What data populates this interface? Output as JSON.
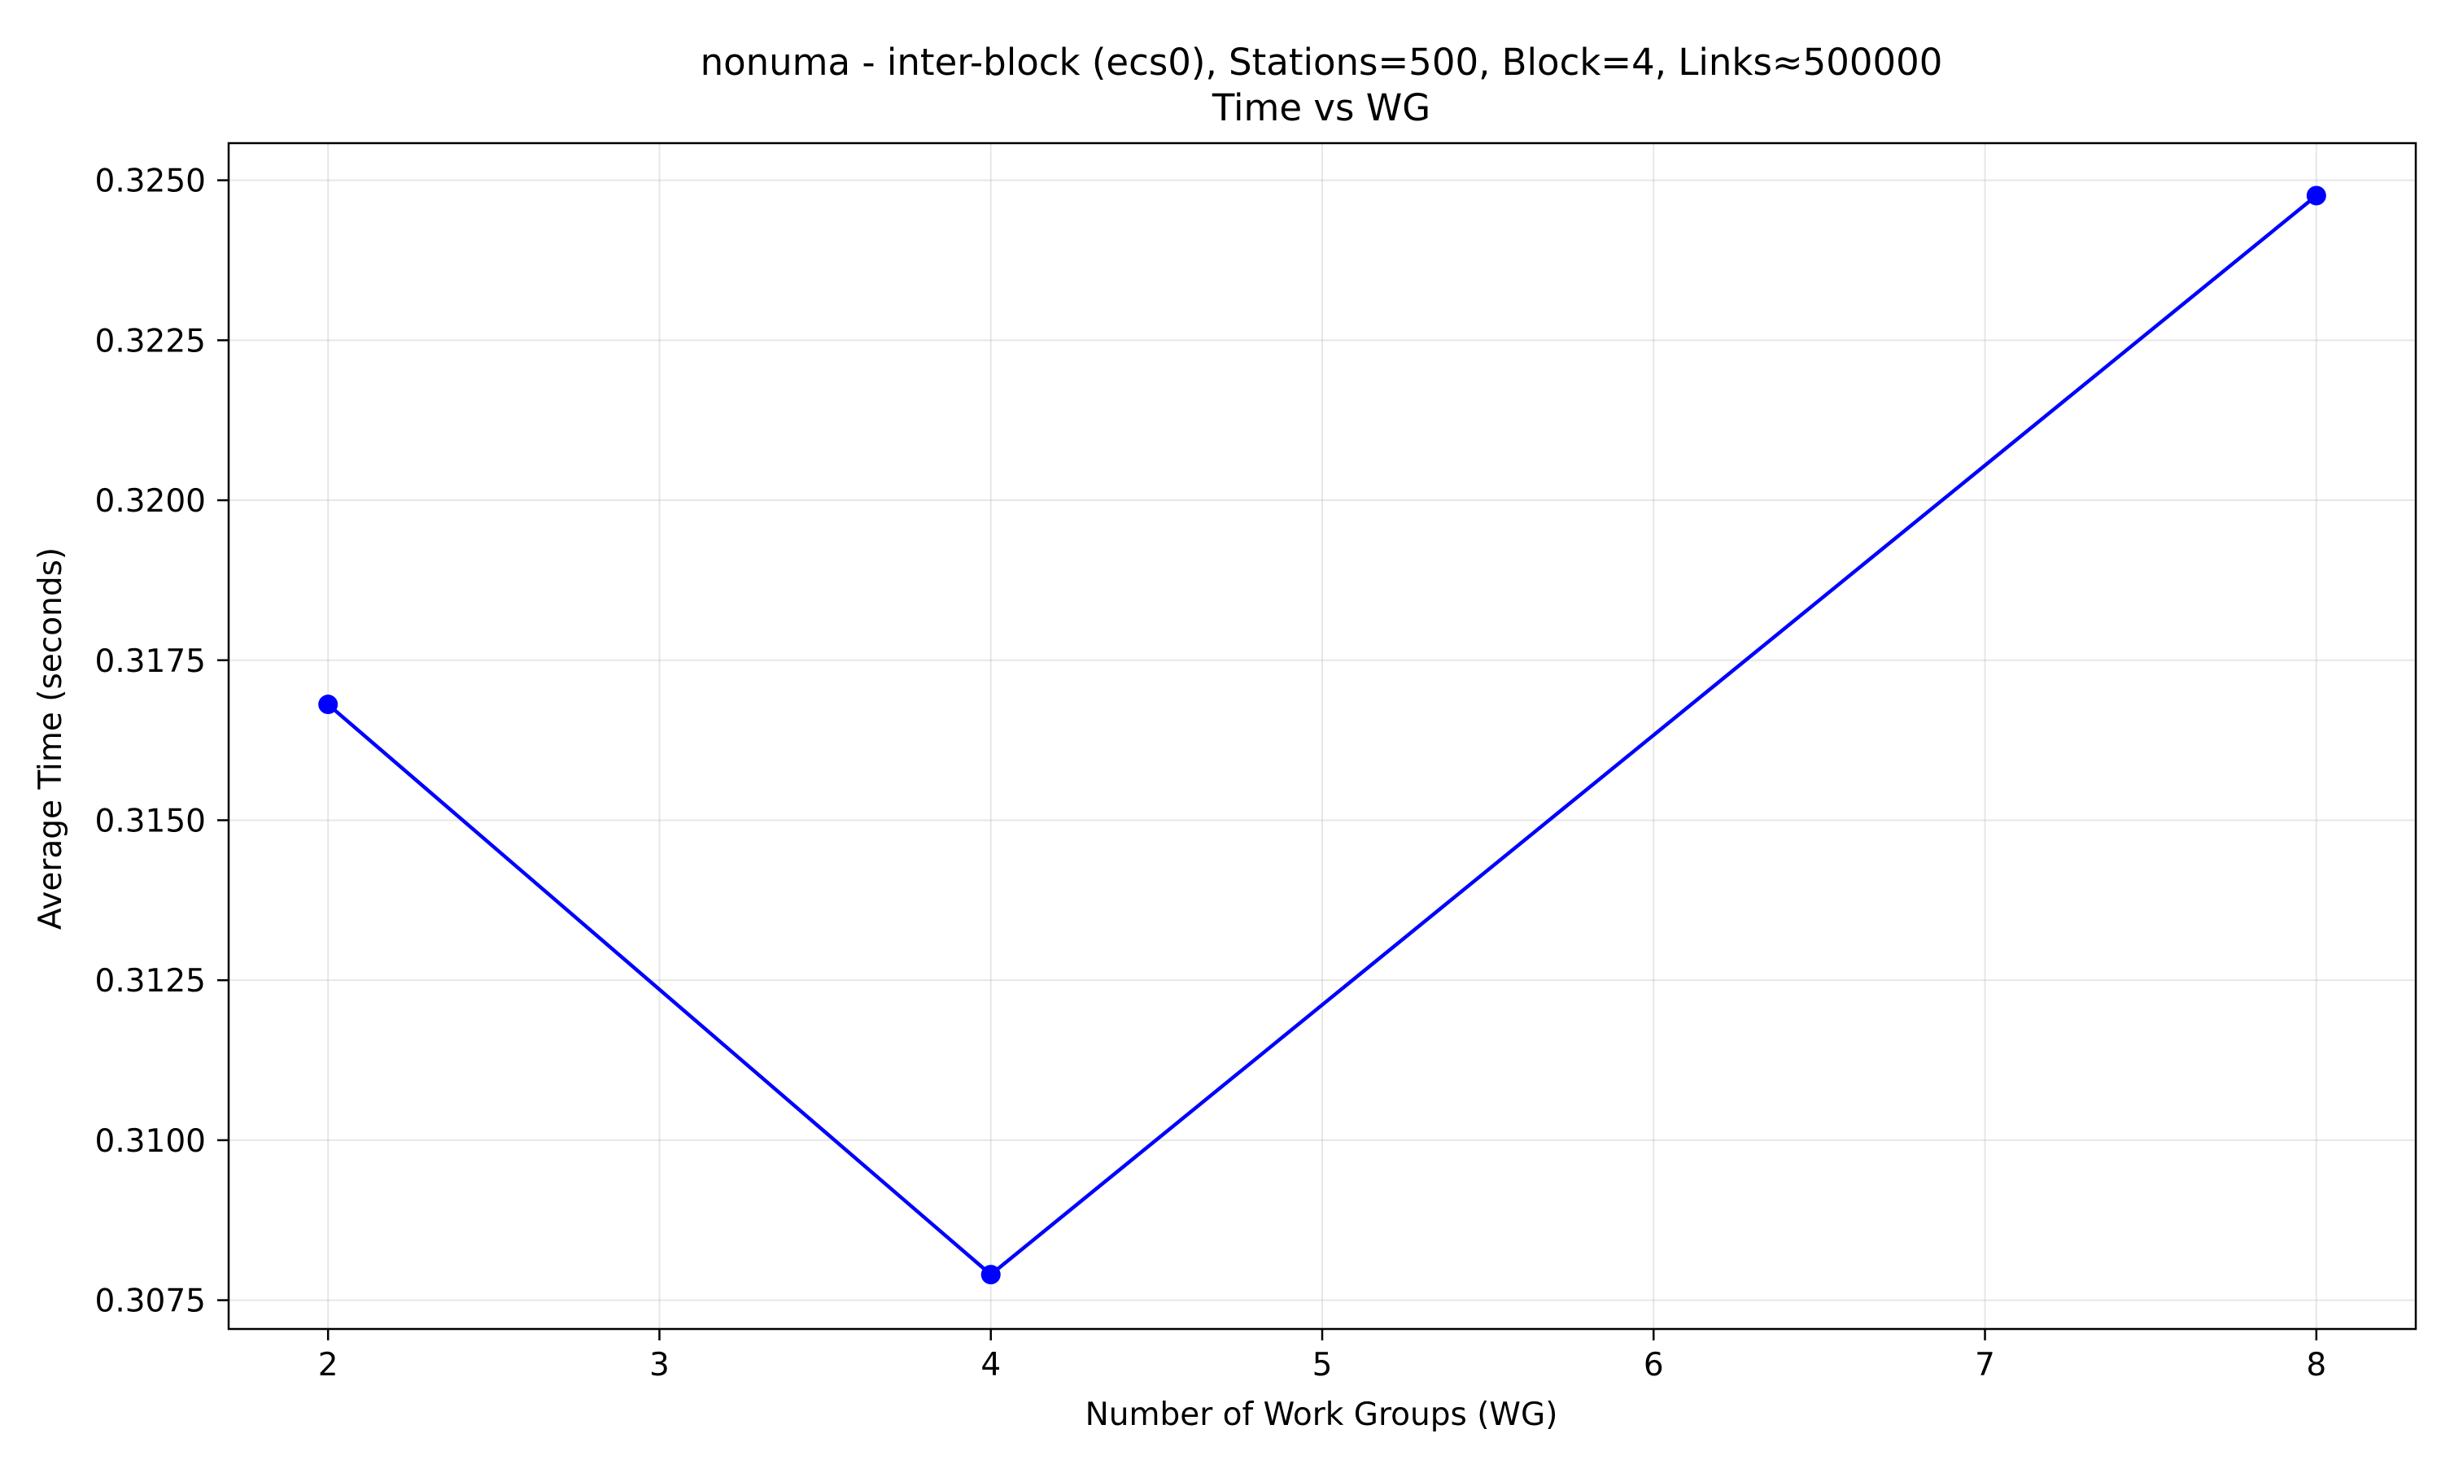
{
  "chart_data": {
    "type": "line",
    "title": "nonuma - inter-block (ecs0), Stations=500, Block=4, Links≈500000",
    "subtitle": "Time vs WG",
    "xlabel": "Number of Work Groups (WG)",
    "ylabel": "Average Time (seconds)",
    "x": [
      2,
      4,
      8
    ],
    "series": [
      {
        "values": [
          0.31681,
          0.3079,
          0.32476
        ],
        "color": "#0000ff",
        "marker": "circle"
      }
    ],
    "xlim": [
      1.7,
      8.3
    ],
    "ylim": [
      0.30705,
      0.32558
    ],
    "xticks": [
      2,
      3,
      4,
      5,
      6,
      7,
      8
    ],
    "xtick_labels": [
      "2",
      "3",
      "4",
      "5",
      "6",
      "7",
      "8"
    ],
    "yticks": [
      0.3075,
      0.31,
      0.3125,
      0.315,
      0.3175,
      0.32,
      0.3225,
      0.325
    ],
    "ytick_labels": [
      "0.3075",
      "0.3100",
      "0.3125",
      "0.3150",
      "0.3175",
      "0.3200",
      "0.3225",
      "0.3250"
    ],
    "grid": true,
    "legend": "none"
  }
}
